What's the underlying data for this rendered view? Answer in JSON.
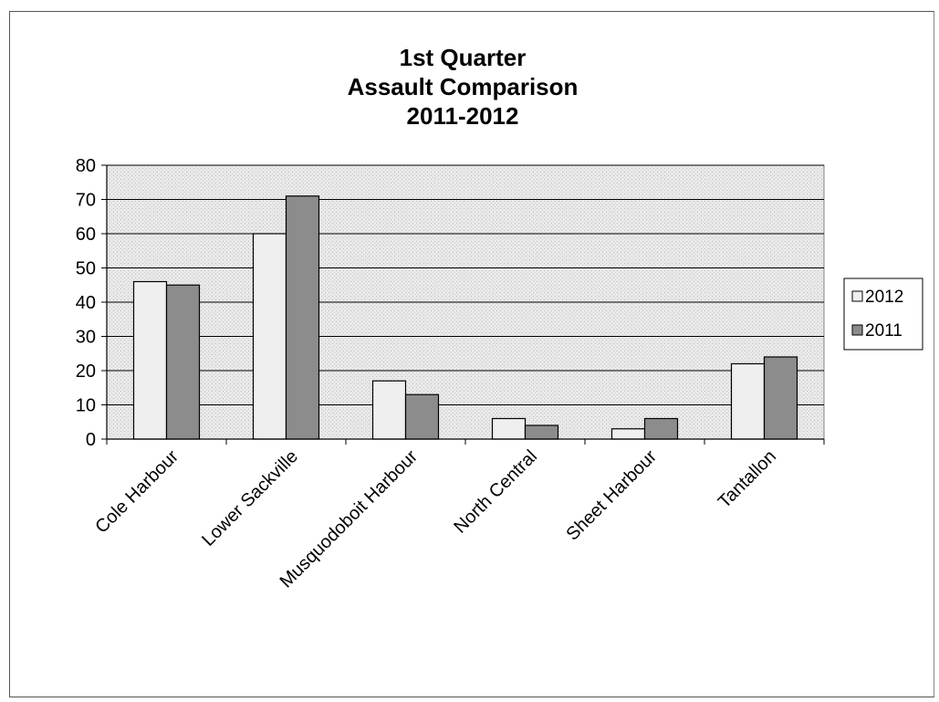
{
  "chart_data": {
    "type": "bar",
    "title": [
      "1st Quarter",
      "Assault Comparison",
      "2011-2012"
    ],
    "categories": [
      "Cole Harbour",
      "Lower Sackville",
      "Musquodoboit Harbour",
      "North Central",
      "Sheet Harbour",
      "Tantallon"
    ],
    "series": [
      {
        "name": "2012",
        "values": [
          46,
          60,
          17,
          6,
          3,
          22
        ],
        "color": "#efefef"
      },
      {
        "name": "2011",
        "values": [
          45,
          71,
          13,
          4,
          6,
          24
        ],
        "color": "#8c8c8c"
      }
    ],
    "ylim": [
      0,
      80
    ],
    "yticks": [
      0,
      10,
      20,
      30,
      40,
      50,
      60,
      70,
      80
    ],
    "xlabel": "",
    "ylabel": "",
    "grid": true,
    "legend": "right",
    "plot_background": "#e6e6e6"
  }
}
